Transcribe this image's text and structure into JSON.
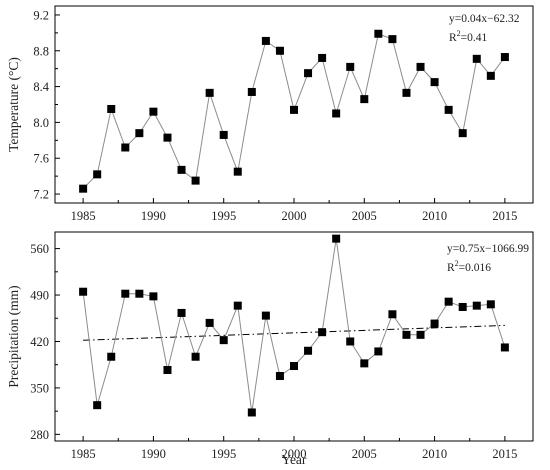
{
  "chart_data": [
    {
      "type": "line",
      "name": "temperature",
      "xlabel": "",
      "ylabel": "Temperature (°C)",
      "xlim": [
        1983,
        2017
      ],
      "ylim": [
        7.1,
        9.3
      ],
      "xticks": [
        1985,
        1990,
        1995,
        2000,
        2005,
        2010,
        2015
      ],
      "yticks": [
        7.2,
        7.6,
        8.0,
        8.4,
        8.8,
        9.2
      ],
      "ytick_decimals": 1,
      "grid": false,
      "x": [
        1985,
        1986,
        1987,
        1988,
        1989,
        1990,
        1991,
        1992,
        1993,
        1994,
        1995,
        1996,
        1997,
        1998,
        1999,
        2000,
        2001,
        2002,
        2003,
        2004,
        2005,
        2006,
        2007,
        2008,
        2009,
        2010,
        2011,
        2012,
        2013,
        2014,
        2015
      ],
      "y": [
        7.26,
        7.42,
        8.15,
        7.72,
        7.88,
        8.12,
        7.83,
        7.47,
        7.35,
        8.33,
        7.86,
        7.45,
        8.34,
        8.91,
        8.8,
        8.14,
        8.55,
        8.72,
        8.1,
        8.62,
        8.26,
        8.99,
        8.93,
        8.33,
        8.62,
        8.45,
        8.14,
        7.88,
        8.71,
        8.52,
        8.73
      ],
      "trend": {
        "slope": 0.04,
        "intercept": -62.32,
        "style": "dashed"
      },
      "equation": "y=0.04x−62.32",
      "r2_label": "R",
      "r2_value": "=0.41"
    },
    {
      "type": "line",
      "name": "precipitation",
      "xlabel": "Year",
      "ylabel": "Precipitation (mm)",
      "xlim": [
        1983,
        2017
      ],
      "ylim": [
        270,
        585
      ],
      "xticks": [
        1985,
        1990,
        1995,
        2000,
        2005,
        2010,
        2015
      ],
      "yticks": [
        280,
        350,
        420,
        490,
        560
      ],
      "ytick_decimals": 0,
      "grid": false,
      "x": [
        1985,
        1986,
        1987,
        1988,
        1989,
        1990,
        1991,
        1992,
        1993,
        1994,
        1995,
        1996,
        1997,
        1998,
        1999,
        2000,
        2001,
        2002,
        2003,
        2004,
        2005,
        2006,
        2007,
        2008,
        2009,
        2010,
        2011,
        2012,
        2013,
        2014,
        2015
      ],
      "y": [
        495,
        324,
        397,
        492,
        492,
        488,
        377,
        463,
        397,
        448,
        422,
        474,
        313,
        459,
        368,
        383,
        406,
        434,
        575,
        420,
        387,
        405,
        461,
        430,
        430,
        447,
        480,
        472,
        474,
        476,
        411
      ],
      "trend": {
        "slope": 0.75,
        "intercept": -1066.99,
        "style": "dashdot"
      },
      "equation": "y=0.75x−1066.99",
      "r2_label": "R",
      "r2_value": "=0.016"
    }
  ]
}
